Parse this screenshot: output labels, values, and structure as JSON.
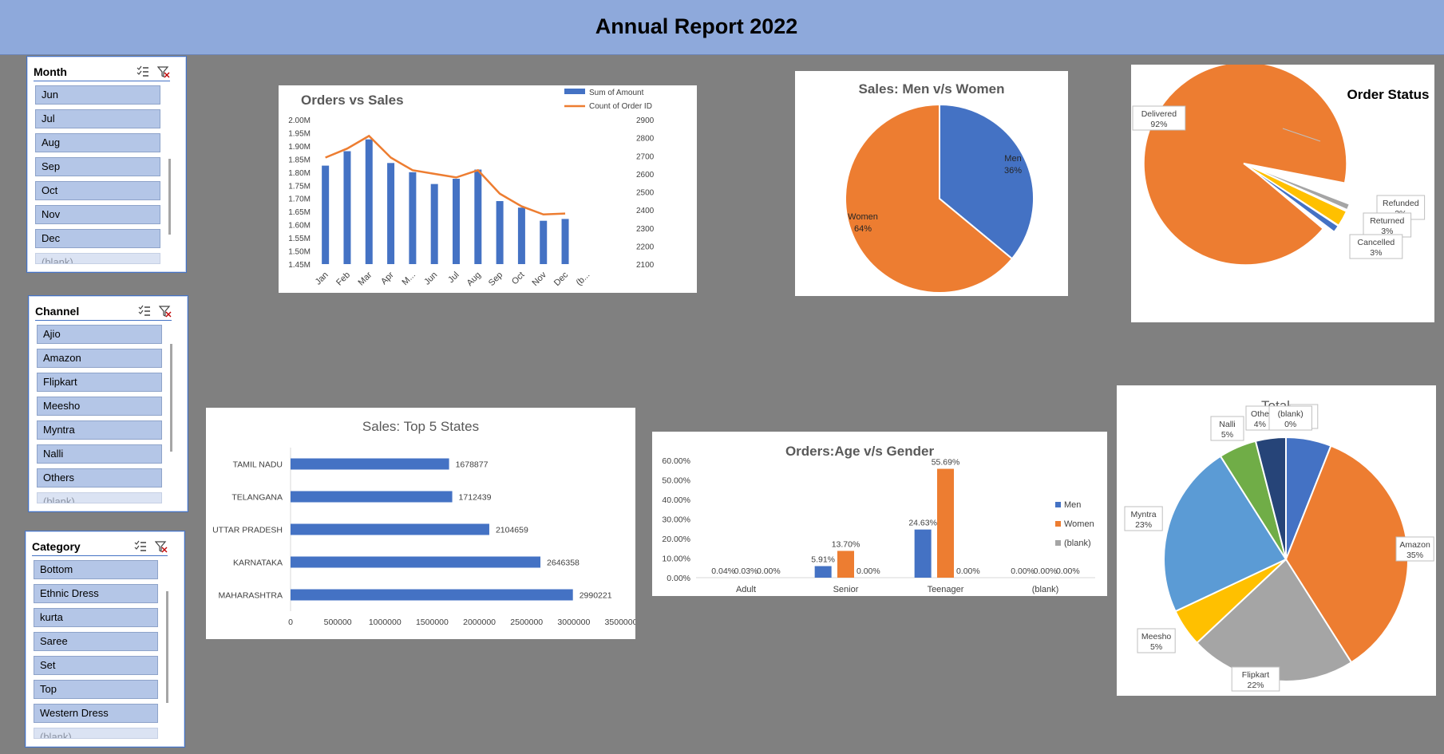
{
  "header": {
    "title": "Annual Report 2022"
  },
  "slicers": {
    "month": {
      "title": "Month",
      "items": [
        "Jun",
        "Jul",
        "Aug",
        "Sep",
        "Oct",
        "Nov",
        "Dec",
        "(blank)"
      ]
    },
    "channel": {
      "title": "Channel",
      "items": [
        "Ajio",
        "Amazon",
        "Flipkart",
        "Meesho",
        "Myntra",
        "Nalli",
        "Others",
        "(blank)"
      ]
    },
    "category": {
      "title": "Category",
      "items": [
        "Bottom",
        "Ethnic Dress",
        "kurta",
        "Saree",
        "Set",
        "Top",
        "Western Dress",
        "(blank)"
      ]
    }
  },
  "chart_data": [
    {
      "id": "orders_sales",
      "type": "bar",
      "title": "Orders vs  Sales",
      "categories": [
        "Jan",
        "Feb",
        "Mar",
        "Apr",
        "M...",
        "Jun",
        "Jul",
        "Aug",
        "Sep",
        "Oct",
        "Nov",
        "Dec",
        "(b..."
      ],
      "series": [
        {
          "name": "Sum of Amount",
          "type": "bar",
          "axis": "left",
          "color": "#4472C4",
          "values": [
            1.825,
            1.88,
            1.925,
            1.835,
            1.8,
            1.755,
            1.775,
            1.81,
            1.69,
            1.665,
            1.615,
            1.622,
            null
          ]
        },
        {
          "name": "Count of Order ID",
          "type": "line",
          "axis": "right",
          "color": "#ED7D31",
          "values": [
            2690,
            2740,
            2810,
            2690,
            2620,
            2600,
            2580,
            2620,
            2490,
            2420,
            2375,
            2380,
            null
          ]
        }
      ],
      "ylim": [
        1.45,
        2.0
      ],
      "y_ticks": [
        "1.45M",
        "1.50M",
        "1.55M",
        "1.60M",
        "1.65M",
        "1.70M",
        "1.75M",
        "1.80M",
        "1.85M",
        "1.90M",
        "1.95M",
        "2.00M"
      ],
      "y2lim": [
        2100,
        2900
      ],
      "y2_ticks": [
        "2100",
        "2200",
        "2300",
        "2400",
        "2500",
        "2600",
        "2700",
        "2800",
        "2900"
      ],
      "legend": "top-right"
    },
    {
      "id": "men_women",
      "type": "pie",
      "title": "Sales: Men v/s Women",
      "slices": [
        {
          "label": "Men",
          "percent_label": "36%",
          "value": 36,
          "color": "#4472C4"
        },
        {
          "label": "Women",
          "percent_label": "64%",
          "value": 64,
          "color": "#ED7D31"
        }
      ]
    },
    {
      "id": "order_status",
      "type": "pie",
      "title": "Order Status",
      "slices": [
        {
          "label": "Delivered",
          "percent_label": "92%",
          "value": 92,
          "color": "#ED7D31"
        },
        {
          "label": "Refunded",
          "percent_label": "2%",
          "value": 2,
          "color": "#A5A5A5"
        },
        {
          "label": "Returned",
          "percent_label": "3%",
          "value": 3,
          "color": "#FFC000"
        },
        {
          "label": "Cancelled",
          "percent_label": "3%",
          "value": 3,
          "color": "#4472C4"
        }
      ]
    },
    {
      "id": "top_states",
      "type": "bar",
      "orientation": "horizontal",
      "title": "Sales: Top 5 States",
      "categories": [
        "TAMIL NADU",
        "TELANGANA",
        "UTTAR PRADESH",
        "KARNATAKA",
        "MAHARASHTRA"
      ],
      "values": [
        1678877,
        1712439,
        2104659,
        2646358,
        2990221
      ],
      "value_labels": [
        "1678877",
        "1712439",
        "2104659",
        "2646358",
        "2990221"
      ],
      "xlim": [
        0,
        3500000
      ],
      "x_ticks": [
        "0",
        "500000",
        "1000000",
        "1500000",
        "2000000",
        "2500000",
        "3000000",
        "3500000"
      ],
      "color": "#4472C4"
    },
    {
      "id": "age_gender",
      "type": "bar",
      "title": "Orders:Age v/s Gender",
      "categories": [
        "Adult",
        "Senior",
        "Teenager",
        "(blank)"
      ],
      "series": [
        {
          "name": "Men",
          "color": "#4472C4",
          "values": [
            0.04,
            5.91,
            24.63,
            0.0
          ],
          "labels": [
            "0.04%",
            "5.91%",
            "24.63%",
            "0.00%"
          ]
        },
        {
          "name": "Women",
          "color": "#ED7D31",
          "values": [
            0.03,
            13.7,
            55.69,
            0.0
          ],
          "labels": [
            "0.03%",
            "13.70%",
            "55.69%",
            "0.00%"
          ]
        },
        {
          "name": "(blank)",
          "color": "#A5A5A5",
          "values": [
            0.0,
            0.0,
            0.0,
            0.0
          ],
          "labels": [
            "0.00%",
            "0.00%",
            "0.00%",
            "0.00%"
          ]
        }
      ],
      "ylim": [
        0,
        60
      ],
      "y_ticks": [
        "0.00%",
        "10.00%",
        "20.00%",
        "30.00%",
        "40.00%",
        "50.00%",
        "60.00%"
      ],
      "legend": "right"
    },
    {
      "id": "channel_total",
      "type": "pie",
      "title": "Total",
      "slices": [
        {
          "label": "Ajio",
          "percent_label": "6%",
          "value": 6,
          "color": "#4472C4"
        },
        {
          "label": "Amazon",
          "percent_label": "35%",
          "value": 35,
          "color": "#ED7D31"
        },
        {
          "label": "Flipkart",
          "percent_label": "22%",
          "value": 22,
          "color": "#A5A5A5"
        },
        {
          "label": "Meesho",
          "percent_label": "5%",
          "value": 5,
          "color": "#FFC000"
        },
        {
          "label": "Myntra",
          "percent_label": "23%",
          "value": 23,
          "color": "#5B9BD5"
        },
        {
          "label": "Nalli",
          "percent_label": "5%",
          "value": 5,
          "color": "#70AD47"
        },
        {
          "label": "Othe",
          "percent_label": "4%",
          "value": 4,
          "color": "#264478"
        },
        {
          "label": "(blank)",
          "percent_label": "0%",
          "value": 0,
          "color": "#9E480E"
        }
      ]
    }
  ]
}
